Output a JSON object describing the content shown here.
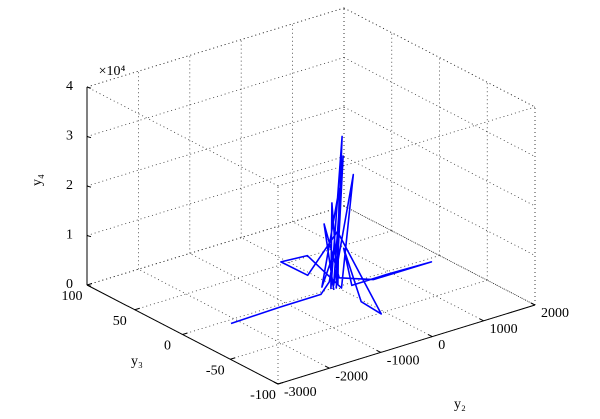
{
  "chart_data": {
    "type": "line3d",
    "xlabel": "y₂",
    "ylabel": "y₃",
    "zlabel": "y₄",
    "z_multiplier": "×10⁴",
    "xlim": [
      -3000,
      2000
    ],
    "xticks": [
      -3000,
      -2000,
      -1000,
      0,
      1000,
      2000
    ],
    "ylim": [
      -100,
      100
    ],
    "yticks": [
      -100,
      -50,
      0,
      50,
      100
    ],
    "zlim": [
      0,
      40000
    ],
    "zticks": [
      {
        "value": 0,
        "label": "0"
      },
      {
        "value": 10000,
        "label": "1"
      },
      {
        "value": 20000,
        "label": "2"
      },
      {
        "value": 30000,
        "label": "3"
      },
      {
        "value": 40000,
        "label": "4"
      }
    ],
    "grid": true,
    "color": "#0000ff",
    "x": [
      -2150,
      -1200,
      -400,
      -200,
      -150,
      -250,
      -100,
      -50,
      0,
      -150,
      -80,
      -120,
      50,
      -60,
      100,
      0,
      -200,
      -100,
      -100,
      -80,
      -100,
      -80,
      -50,
      200,
      900,
      1750,
      600,
      -100,
      -300,
      -150
    ],
    "y": [
      -5,
      -4,
      -5,
      -3,
      -6,
      2,
      -8,
      -4,
      5,
      -2,
      -10,
      -6,
      -4,
      0,
      -12,
      -5,
      20,
      53,
      25,
      -5,
      -52,
      -30,
      -10,
      -5,
      -4,
      -5,
      -6,
      -8,
      -3,
      -5
    ],
    "z": [
      0,
      100,
      300,
      2000,
      8500,
      600,
      21000,
      1200,
      16500,
      400,
      31700,
      800,
      26700,
      500,
      23600,
      300,
      5000,
      100,
      200,
      12000,
      100,
      300,
      9000,
      200,
      100,
      0,
      200,
      3000,
      14000,
      400
    ]
  }
}
